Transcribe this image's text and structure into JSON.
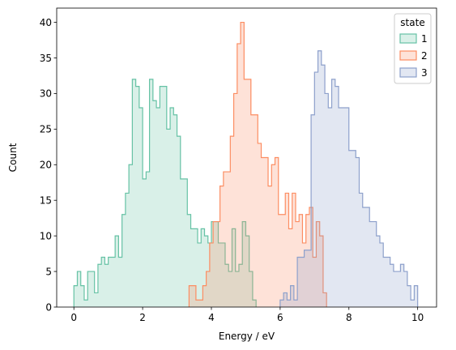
{
  "chart_data": {
    "type": "histogram",
    "xlabel": "Energy / eV",
    "ylabel": "Count",
    "xlim": [
      -0.5,
      10.55
    ],
    "ylim": [
      0,
      42
    ],
    "xticks": [
      0,
      2,
      4,
      6,
      8,
      10
    ],
    "yticks": [
      0,
      5,
      10,
      15,
      20,
      25,
      30,
      35,
      40
    ],
    "grid": false,
    "legend": {
      "title": "state",
      "placement": "top-right"
    },
    "element": "step",
    "fill_alpha": 0.25,
    "series": [
      {
        "name": "1",
        "color": "#66c2a5",
        "bin_start": 0.0,
        "bin_width": 0.1,
        "counts": [
          3,
          5,
          3,
          1,
          5,
          5,
          2,
          6,
          7,
          6,
          7,
          7,
          10,
          7,
          13,
          16,
          20,
          32,
          31,
          28,
          18,
          19,
          32,
          29,
          28,
          31,
          31,
          25,
          28,
          27,
          24,
          18,
          18,
          13,
          11,
          11,
          9,
          11,
          10,
          9,
          12,
          12,
          9,
          9,
          6,
          5,
          11,
          5,
          6,
          12,
          10,
          5,
          1
        ]
      },
      {
        "name": "2",
        "color": "#fc8d62",
        "bin_start": 3.35,
        "bin_width": 0.1,
        "counts": [
          3,
          3,
          1,
          1,
          3,
          5,
          9,
          12,
          12,
          17,
          19,
          19,
          24,
          30,
          37,
          40,
          32,
          32,
          27,
          27,
          23,
          21,
          21,
          17,
          20,
          21,
          13,
          13,
          16,
          11,
          16,
          12,
          13,
          9,
          13,
          14,
          7,
          12,
          10,
          2
        ]
      },
      {
        "name": "3",
        "color": "#8da0cb",
        "bin_start": 6.0,
        "bin_width": 0.1,
        "counts": [
          1,
          2,
          1,
          3,
          1,
          7,
          7,
          8,
          8,
          27,
          33,
          36,
          34,
          30,
          28,
          32,
          31,
          28,
          28,
          28,
          22,
          22,
          21,
          16,
          14,
          14,
          12,
          12,
          10,
          9,
          7,
          7,
          6,
          5,
          5,
          6,
          5,
          3,
          1,
          3
        ]
      }
    ]
  }
}
